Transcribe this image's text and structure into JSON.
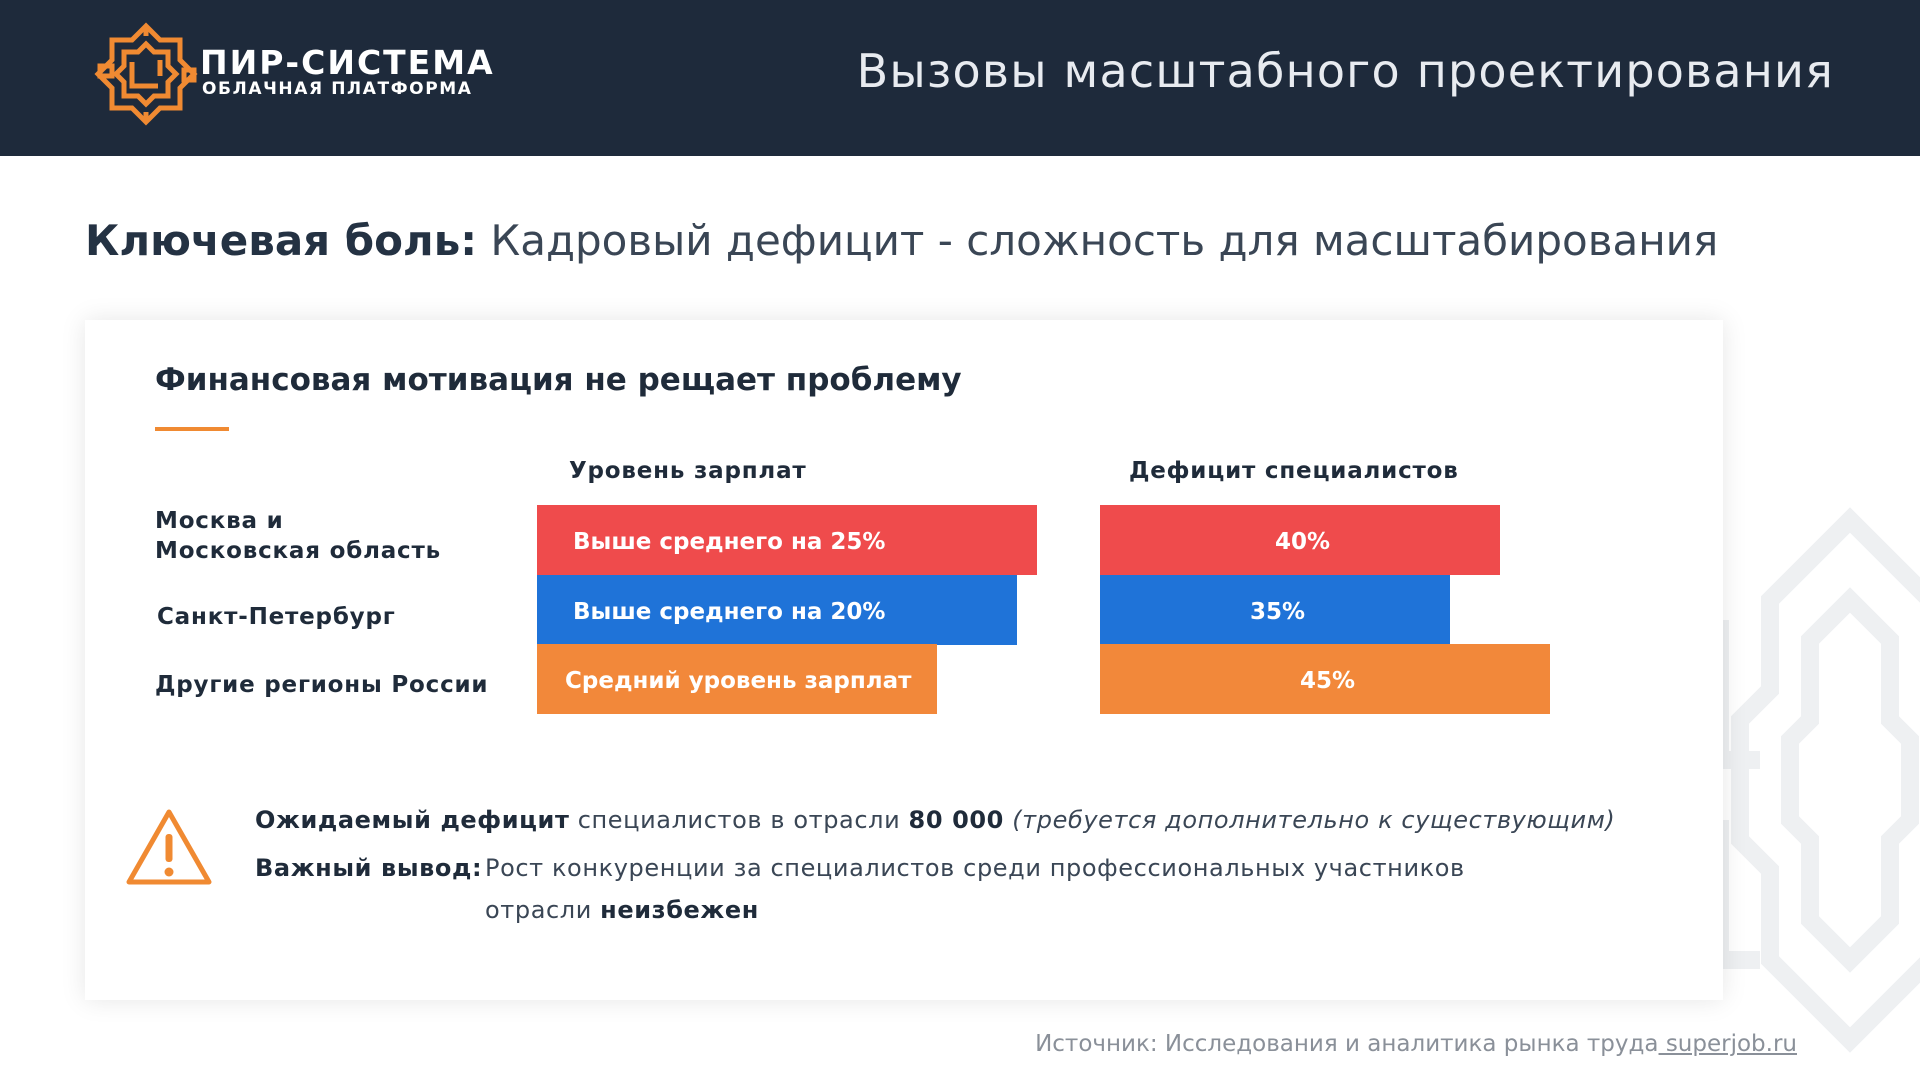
{
  "header": {
    "logo_main": "ПИР-СИСТЕМА",
    "logo_sub": "ОБЛАЧНАЯ ПЛАТФОРМА",
    "title": "Вызовы масштабного проектирования"
  },
  "main_title": {
    "lead": "Ключевая боль:",
    "rest": " Кадровый дефицит - сложность для масштабирования"
  },
  "card": {
    "title": "Финансовая мотивация не рещает проблему",
    "col_salary": "Уровень зарплат",
    "col_deficit": "Дефицит специалистов"
  },
  "regions": [
    {
      "label_line1": "Москва и",
      "label_line2": "Московская область"
    },
    {
      "label_line1": "Санкт-Петербург"
    },
    {
      "label_line1": "Другие регионы России"
    }
  ],
  "chart_data": [
    {
      "type": "bar",
      "title": "Уровень зарплат",
      "categories": [
        "Москва и Московская область",
        "Санкт-Петербург",
        "Другие регионы России"
      ],
      "values": [
        25,
        20,
        0
      ],
      "labels": [
        "Выше среднего на 25%",
        "Выше среднего на 20%",
        "Средний уровень зарплат"
      ],
      "colors": [
        "#ef4b4c",
        "#1f73d8",
        "#f2883a"
      ]
    },
    {
      "type": "bar",
      "title": "Дефицит специалистов",
      "categories": [
        "Москва и Московская область",
        "Санкт-Петербург",
        "Другие регионы России"
      ],
      "values": [
        40,
        35,
        45
      ],
      "labels": [
        "40%",
        "35%",
        "45%"
      ],
      "colors": [
        "#ef4b4c",
        "#1f73d8",
        "#f2883a"
      ]
    }
  ],
  "info": {
    "line1_bold": "Ожидаемый дефицит",
    "line1_text": " специалистов в отрасли ",
    "line1_number": "80 000",
    "line1_italic": " (требуется дополнительно к существующим)",
    "line2_bold": "Важный вывод:",
    "line2_text": "Рост конкуренции за специалистов среди профессиональных участников",
    "line3_text": "отрасли ",
    "line3_bold": "неизбежен"
  },
  "source": {
    "prefix": "Источник: Исследования и аналитика рынка труда",
    "link": " superjob.ru"
  },
  "colors": {
    "header_bg": "#1e2a3b",
    "accent_orange": "#f08a32",
    "red": "#ef4b4c",
    "blue": "#1f73d8",
    "orange": "#f2883a"
  }
}
